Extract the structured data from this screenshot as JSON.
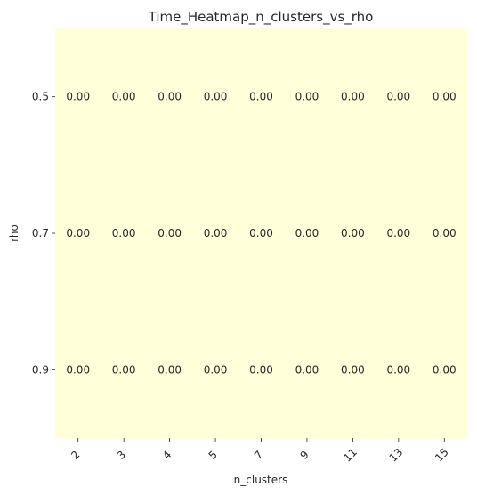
{
  "chart_data": {
    "type": "heatmap",
    "title": "Time_Heatmap_n_clusters_vs_rho",
    "xlabel": "n_clusters",
    "ylabel": "rho",
    "x_categories": [
      "2",
      "3",
      "4",
      "5",
      "7",
      "9",
      "11",
      "13",
      "15"
    ],
    "y_categories": [
      "0.5",
      "0.7",
      "0.9"
    ],
    "values": [
      [
        0,
        0,
        0,
        0,
        0,
        0,
        0,
        0,
        0
      ],
      [
        0,
        0,
        0,
        0,
        0,
        0,
        0,
        0,
        0
      ],
      [
        0,
        0,
        0,
        0,
        0,
        0,
        0,
        0,
        0
      ]
    ],
    "value_labels": [
      [
        "0.00",
        "0.00",
        "0.00",
        "0.00",
        "0.00",
        "0.00",
        "0.00",
        "0.00",
        "0.00"
      ],
      [
        "0.00",
        "0.00",
        "0.00",
        "0.00",
        "0.00",
        "0.00",
        "0.00",
        "0.00",
        "0.00"
      ],
      [
        "0.00",
        "0.00",
        "0.00",
        "0.00",
        "0.00",
        "0.00",
        "0.00",
        "0.00",
        "0.00"
      ]
    ],
    "cell_color": "#ffffd9",
    "colorbar": false,
    "x_tick_rotation": "45 degrees"
  }
}
